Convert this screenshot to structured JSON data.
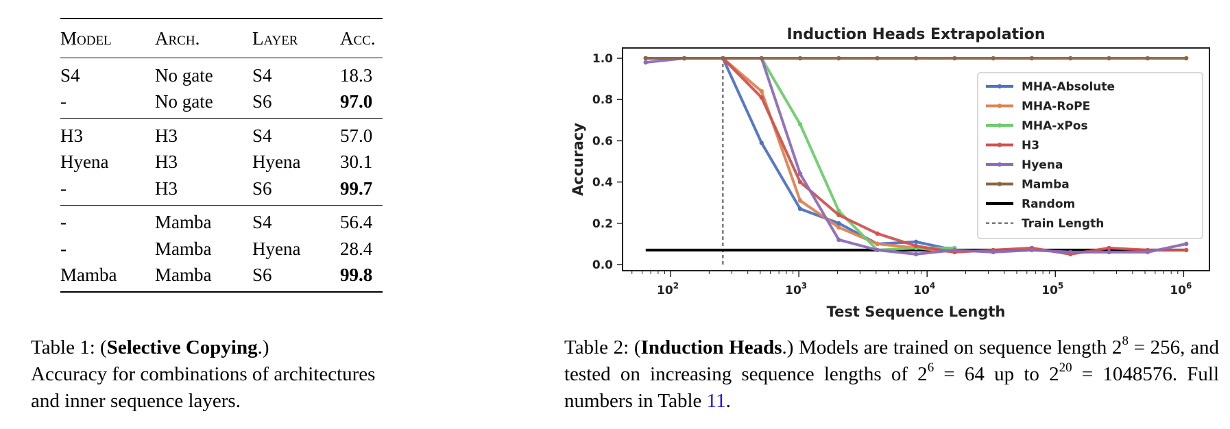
{
  "table1": {
    "headers": [
      "Model",
      "Arch.",
      "Layer",
      "Acc."
    ],
    "groups": [
      [
        {
          "model": "S4",
          "arch": "No gate",
          "layer": "S4",
          "acc": "18.3",
          "bold": false
        },
        {
          "model": "-",
          "arch": "No gate",
          "layer": "S6",
          "acc": "97.0",
          "bold": true
        }
      ],
      [
        {
          "model": "H3",
          "arch": "H3",
          "layer": "S4",
          "acc": "57.0",
          "bold": false
        },
        {
          "model": "Hyena",
          "arch": "H3",
          "layer": "Hyena",
          "acc": "30.1",
          "bold": false
        },
        {
          "model": "-",
          "arch": "H3",
          "layer": "S6",
          "acc": "99.7",
          "bold": true
        }
      ],
      [
        {
          "model": "-",
          "arch": "Mamba",
          "layer": "S4",
          "acc": "56.4",
          "bold": false
        },
        {
          "model": "-",
          "arch": "Mamba",
          "layer": "Hyena",
          "acc": "28.4",
          "bold": false
        },
        {
          "model": "Mamba",
          "arch": "Mamba",
          "layer": "S6",
          "acc": "99.8",
          "bold": true
        }
      ]
    ]
  },
  "caption1": {
    "prefix": "Table 1: (",
    "bold": "Selective Copying",
    "suffix": ".)",
    "line2": "Accuracy for combinations of architectures",
    "line3": "and inner sequence layers."
  },
  "caption2": {
    "prefix": "Table 2: (",
    "bold": "Induction Heads",
    "t1": ".) Models are trained on sequence length 2",
    "e1": "8",
    "t2": " = 256, and tested on increasing sequence lengths of 2",
    "e2": "6",
    "t3": " = 64 up to 2",
    "e3": "20",
    "t4": " = 1048576. Full numbers in Table ",
    "link": "11",
    "t5": "."
  },
  "chart_data": {
    "type": "line",
    "title": "Induction Heads Extrapolation",
    "xlabel": "Test Sequence Length",
    "ylabel": "Accuracy",
    "xscale": "log2",
    "xlim_log2": [
      5.4,
      20.6
    ],
    "ylim": [
      -0.03,
      1.05
    ],
    "x_tick_labels": [
      {
        "base": "10",
        "exp": "2",
        "value": 100
      },
      {
        "base": "10",
        "exp": "3",
        "value": 1000
      },
      {
        "base": "10",
        "exp": "4",
        "value": 10000
      },
      {
        "base": "10",
        "exp": "5",
        "value": 100000
      },
      {
        "base": "10",
        "exp": "6",
        "value": 1000000
      }
    ],
    "y_ticks": [
      0.0,
      0.2,
      0.4,
      0.6,
      0.8,
      1.0
    ],
    "y_tick_labels": [
      "0.0",
      "0.2",
      "0.4",
      "0.6",
      "0.8",
      "1.0"
    ],
    "x": [
      64,
      128,
      256,
      512,
      1024,
      2048,
      4096,
      8192,
      16384,
      32768,
      65536,
      131072,
      262144,
      524288,
      1048576
    ],
    "series": [
      {
        "name": "MHA-Absolute",
        "color": "#4c72c4",
        "values": [
          1.0,
          1.0,
          1.0,
          0.59,
          0.27,
          0.2,
          0.1,
          0.11,
          0.07,
          null,
          null,
          null,
          null,
          null,
          null
        ]
      },
      {
        "name": "MHA-RoPE",
        "color": "#dd8452",
        "values": [
          1.0,
          1.0,
          1.0,
          0.84,
          0.31,
          0.18,
          0.1,
          0.08,
          0.06,
          null,
          null,
          null,
          null,
          null,
          null
        ]
      },
      {
        "name": "MHA-xPos",
        "color": "#6ecc6e",
        "values": [
          1.0,
          1.0,
          1.0,
          1.0,
          0.68,
          0.26,
          0.07,
          0.08,
          0.08,
          null,
          null,
          null,
          null,
          null,
          null
        ]
      },
      {
        "name": "H3",
        "color": "#d1524f",
        "values": [
          1.0,
          1.0,
          1.0,
          0.81,
          0.4,
          0.24,
          0.15,
          0.09,
          0.06,
          0.07,
          0.08,
          0.05,
          0.08,
          0.07,
          0.07
        ]
      },
      {
        "name": "Hyena",
        "color": "#8c6bb8",
        "values": [
          0.98,
          1.0,
          1.0,
          1.0,
          0.44,
          0.12,
          0.07,
          0.05,
          0.07,
          0.06,
          0.07,
          0.06,
          0.06,
          0.06,
          0.1
        ]
      },
      {
        "name": "Mamba",
        "color": "#8c6644",
        "values": [
          1.0,
          1.0,
          1.0,
          1.0,
          1.0,
          1.0,
          1.0,
          1.0,
          1.0,
          1.0,
          1.0,
          1.0,
          1.0,
          1.0,
          1.0
        ]
      }
    ],
    "random": {
      "name": "Random",
      "color": "#000000",
      "value": 0.07
    },
    "train_length": {
      "name": "Train Length",
      "x": 256,
      "y_range": [
        0.0,
        1.0
      ]
    },
    "legend_position": "upper-right",
    "grid": false
  }
}
